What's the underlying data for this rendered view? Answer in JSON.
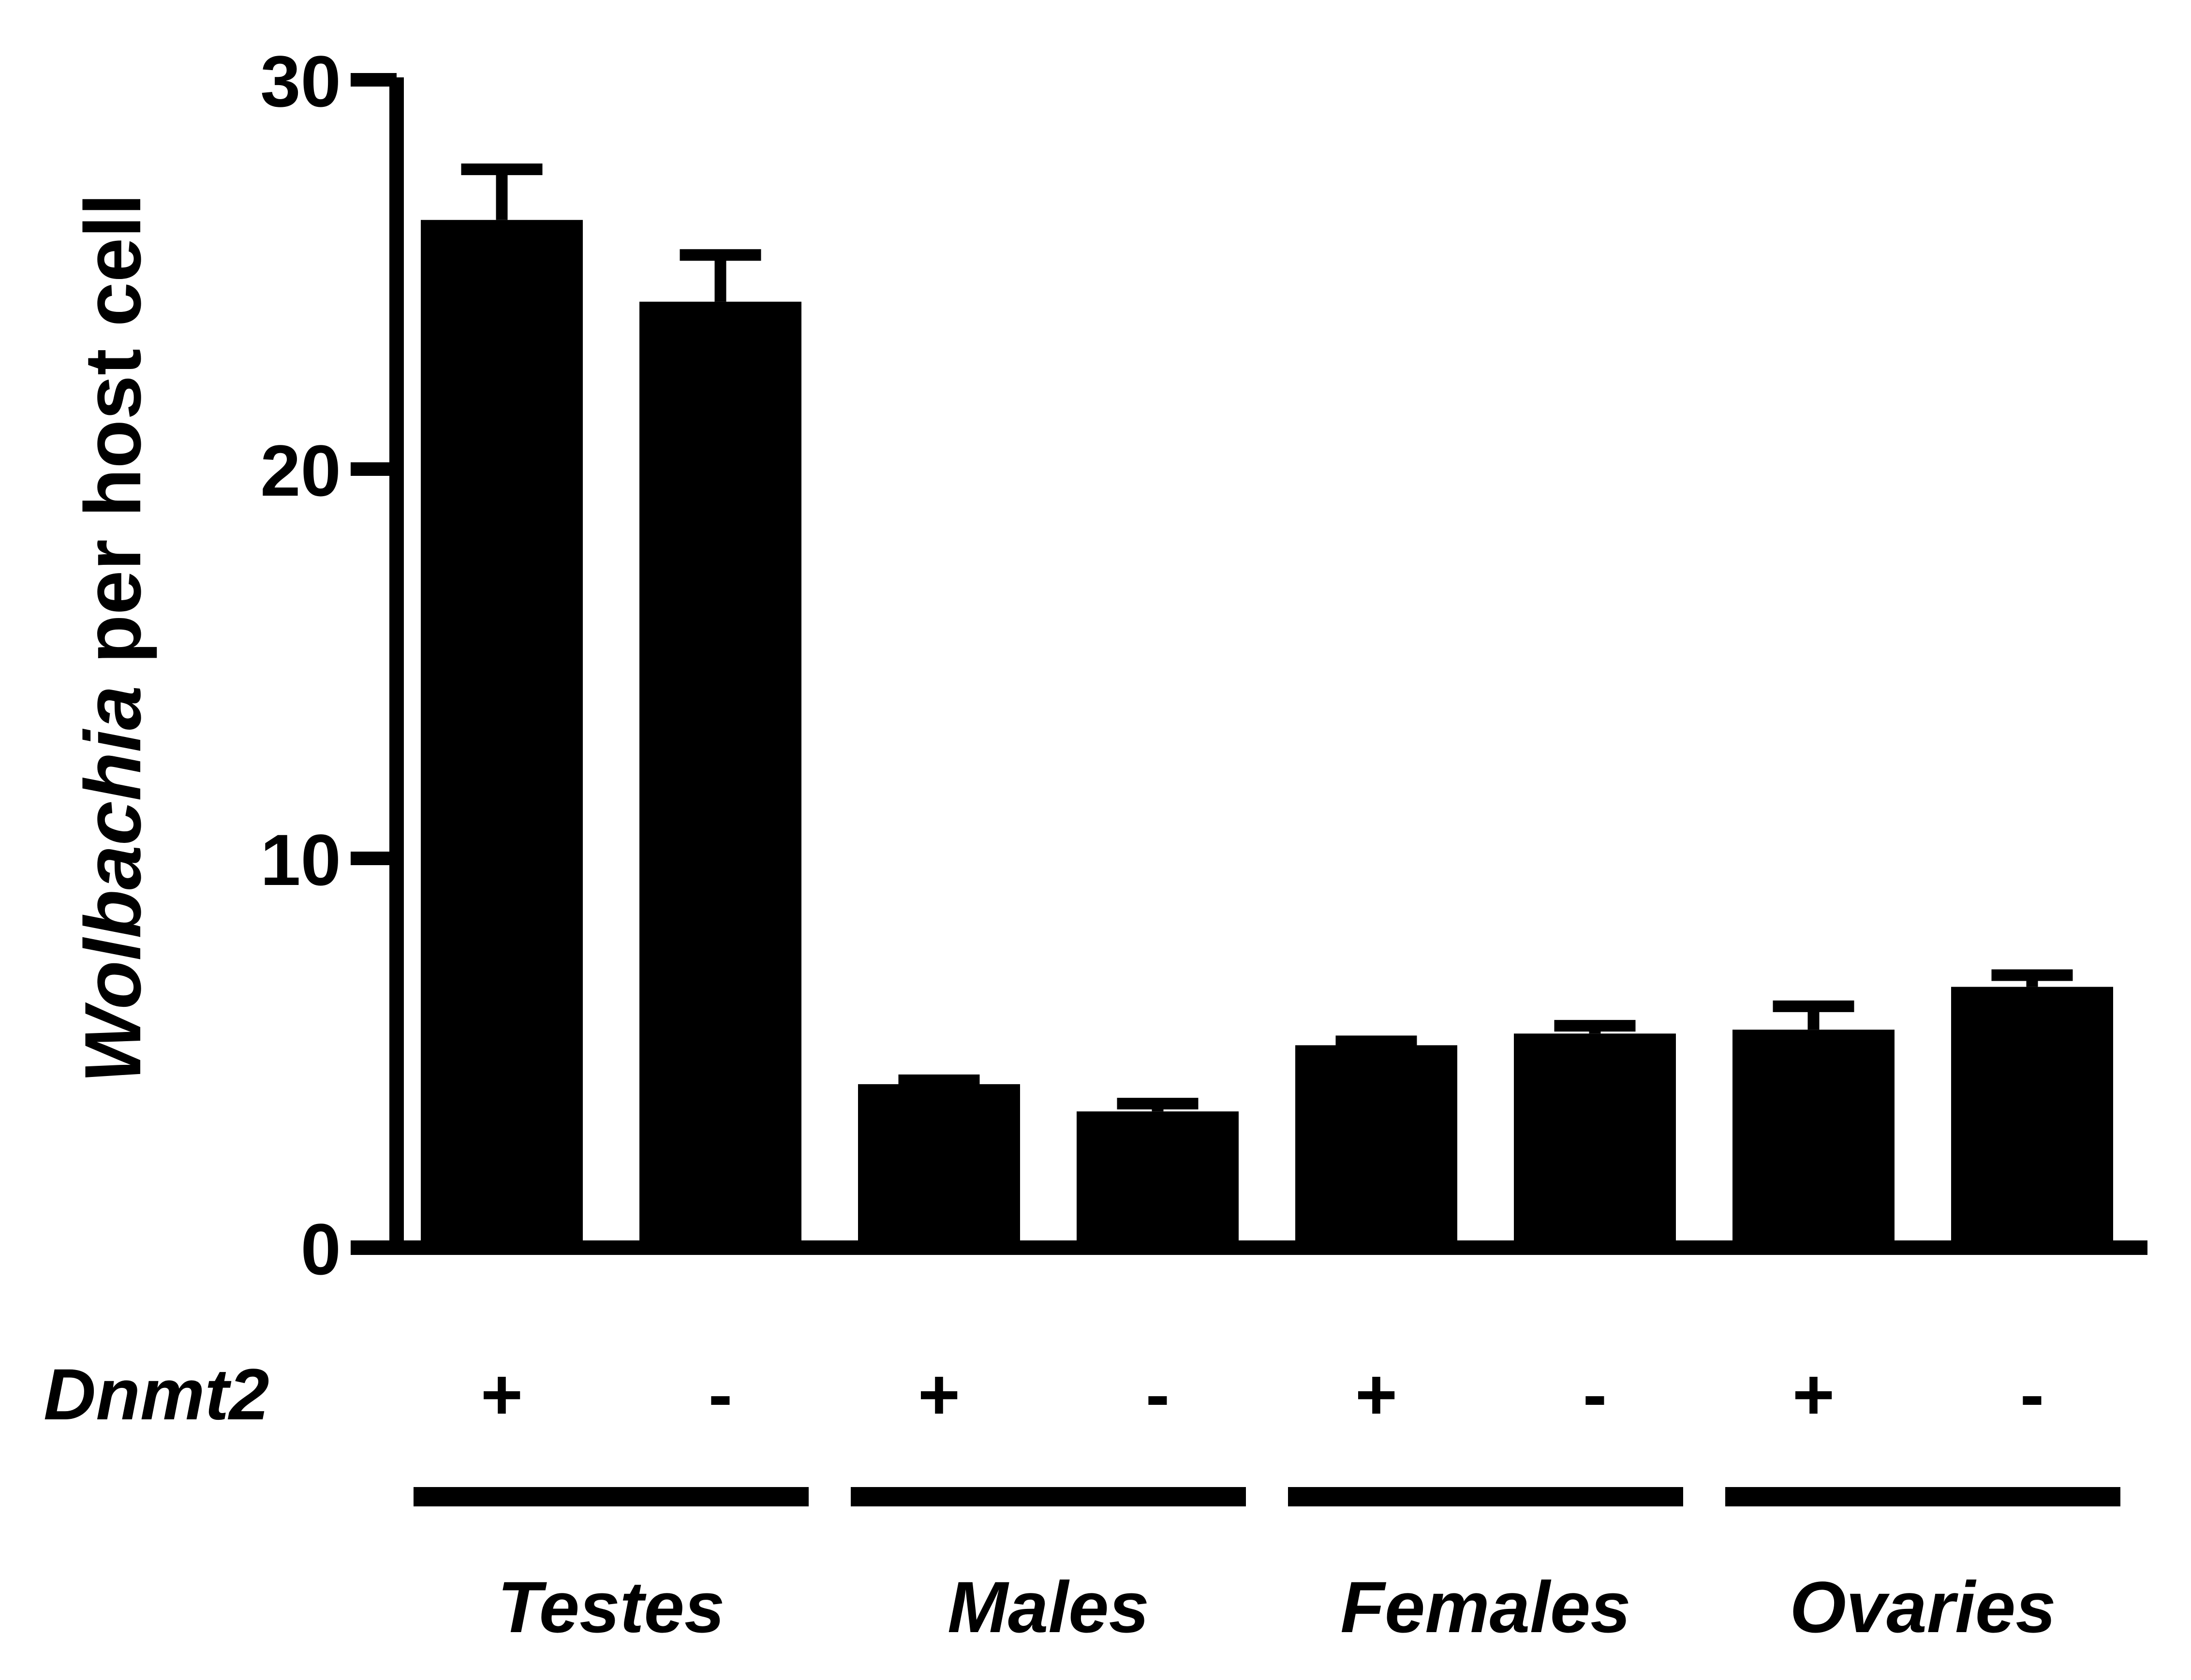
{
  "chart_data": {
    "type": "bar",
    "ylabel": "per host cell",
    "ylabel_italic_prefix": "Wolbachia",
    "yticks": [
      "0",
      "10",
      "20",
      "30"
    ],
    "ylim": [
      0,
      30
    ],
    "row_label": "Dnmt2",
    "categories": [
      "+",
      "-",
      "+",
      "-",
      "+",
      "-",
      "+",
      "-"
    ],
    "groups": [
      "Testes",
      "Males",
      "Females",
      "Ovaries"
    ],
    "values": [
      26.4,
      24.3,
      4.2,
      3.5,
      5.2,
      5.5,
      5.6,
      6.7
    ],
    "errors": [
      1.3,
      1.2,
      0.1,
      0.2,
      0.1,
      0.2,
      0.6,
      0.3
    ],
    "grid": false,
    "bar_color": "#000000"
  }
}
